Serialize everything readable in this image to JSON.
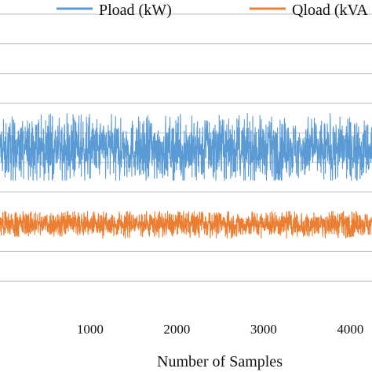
{
  "chart_data": {
    "type": "line",
    "xlabel": "Number of Samples",
    "ylabel": "",
    "xlim": [
      -40,
      4250
    ],
    "ylim": [
      0,
      20
    ],
    "grid": true,
    "legend_position": "top",
    "x_ticks": [
      "1000",
      "2000",
      "3000",
      "4000"
    ],
    "x_tick_values": [
      1000,
      2000,
      3000,
      4000
    ],
    "y_gridlines": [
      2,
      4,
      6,
      8,
      10,
      12,
      14,
      16,
      18,
      20
    ],
    "sample_count": 4250,
    "series": [
      {
        "name": "Pload (kW)",
        "color": "#5b9bd5",
        "mean": 10.9,
        "typical_band": [
          9.6,
          12.2
        ],
        "min": 8.8,
        "max": 13.3
      },
      {
        "name": "Qload (kVA",
        "color": "#ed7d31",
        "mean": 5.85,
        "typical_band": [
          5.3,
          6.4
        ],
        "min": 4.9,
        "max": 6.7
      }
    ]
  }
}
